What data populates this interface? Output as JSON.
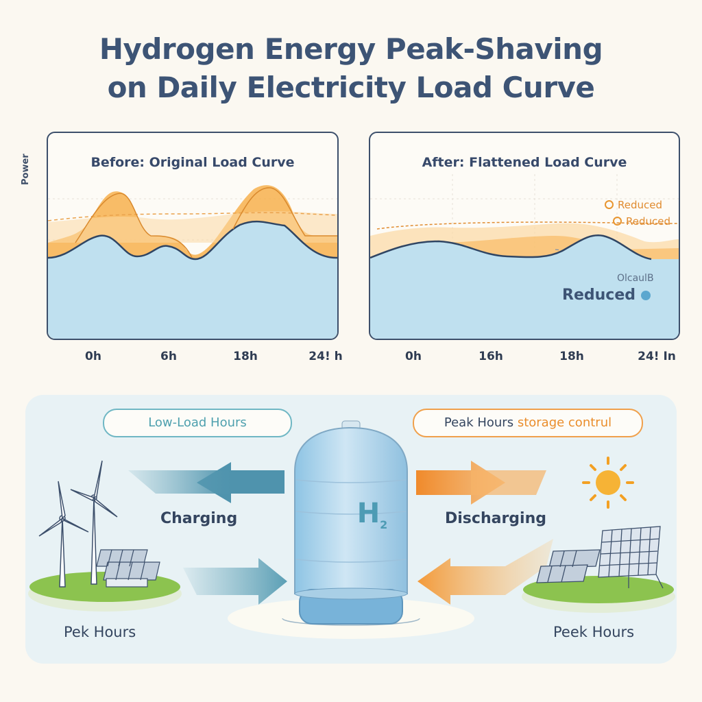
{
  "title": {
    "line1": "Hydrogen Energy Peak-Shaving",
    "line2": "on Daily Electricity Load Curve"
  },
  "before_panel": {
    "title": "Before: Original Load Curve",
    "ylabel": "Power",
    "x_ticks": [
      "0h",
      "6h",
      "18h",
      "24! h"
    ]
  },
  "after_panel": {
    "title": "After: Flattened Load Curve",
    "x_ticks": [
      "0h",
      "16h",
      "18h",
      "24! In"
    ],
    "legend": [
      "Reduced",
      "Reduced"
    ],
    "note": "OlcaulB",
    "reduced_label": "Reduced"
  },
  "bottom": {
    "left_pill": "Low-Load Hours",
    "right_pill_main": "Peak Hours",
    "right_pill_accent": "storage contrul",
    "charging": "Charging",
    "discharging": "Discharging",
    "tank_symbol": "H",
    "tank_subscript": "2",
    "left_footer": "Pek Hours",
    "right_footer": "Peek Hours"
  },
  "colors": {
    "title": "#3d5475",
    "blue_fill": "#bfe0ef",
    "orange_fill": "#f7b04d",
    "line_dark": "#2f4563",
    "accent_orange": "#ea8d2b",
    "accent_teal": "#4ea0ae"
  },
  "icons": [
    "wind-turbine-icon",
    "solar-panel-icon",
    "sun-icon",
    "hydrogen-tank-icon",
    "arrow-left-icon",
    "arrow-right-icon"
  ]
}
